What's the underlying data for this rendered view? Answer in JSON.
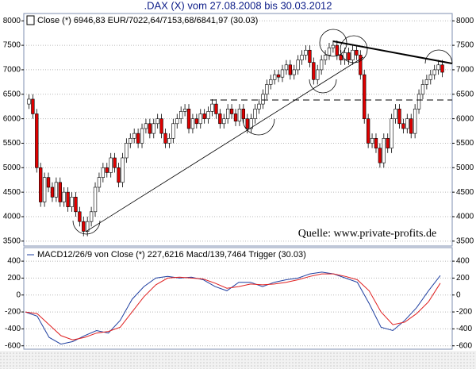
{
  "chart_data": [
    {
      "type": "candlestick",
      "title": ".DAX (X) vom 27.08.2008 bis 30.03.2012",
      "legend": "Close (*) 6946,83 EUR/7022,64/7153,68/6841,97 (30.03)",
      "annotation": "Quelle: www.private-profits.de",
      "up_color": "#ffffff",
      "down_color": "#e00000",
      "ylim": [
        3400,
        8150
      ],
      "yticks": [
        3500,
        4000,
        4500,
        5000,
        5500,
        6000,
        6500,
        7000,
        7500,
        8000
      ],
      "grid": true,
      "open": [
        6300,
        6400,
        6100,
        5000,
        4300,
        4800,
        4600,
        4400,
        4700,
        4300,
        4500,
        4200,
        4400,
        4100,
        3900,
        3700,
        3900,
        4100,
        4600,
        4800,
        5000,
        4900,
        5200,
        5000,
        4700,
        5200,
        5500,
        5600,
        5700,
        5500,
        5800,
        5900,
        5700,
        5900,
        6000,
        5700,
        5500,
        5600,
        5900,
        6000,
        6150,
        6200,
        5800,
        6000,
        5900,
        6100,
        6000,
        6150,
        6300,
        6100,
        5900,
        6000,
        6200,
        6100,
        5950,
        6200,
        6000,
        5800,
        6000,
        6200,
        6300,
        6500,
        6700,
        6800,
        6900,
        6850,
        7000,
        7100,
        6900,
        7000,
        7200,
        7300,
        7400,
        7150,
        6800,
        7000,
        7200,
        7300,
        7450,
        7500,
        7300,
        7200,
        7350,
        7200,
        7400,
        7300,
        6900,
        6000,
        5500,
        5600,
        5400,
        5100,
        5600,
        5400,
        6000,
        6200,
        5900,
        5800,
        6000,
        5700,
        6200,
        6500,
        6700,
        6800,
        6900,
        7000,
        7100
      ],
      "high": [
        6500,
        6500,
        6200,
        5100,
        4900,
        4900,
        4700,
        4800,
        4800,
        4600,
        4600,
        4500,
        4500,
        4200,
        4000,
        4000,
        4200,
        4700,
        4900,
        5100,
        5100,
        5300,
        5300,
        5100,
        5300,
        5600,
        5700,
        5800,
        5800,
        5900,
        6000,
        6000,
        6000,
        6100,
        6100,
        5800,
        5700,
        6000,
        6100,
        6250,
        6300,
        6300,
        6100,
        6100,
        6200,
        6200,
        6250,
        6400,
        6400,
        6200,
        6100,
        6300,
        6300,
        6200,
        6300,
        6300,
        6100,
        6100,
        6300,
        6400,
        6600,
        6800,
        6900,
        7000,
        7000,
        7100,
        7200,
        7200,
        7100,
        7300,
        7400,
        7500,
        7500,
        7250,
        7100,
        7300,
        7400,
        7550,
        7600,
        7600,
        7400,
        7450,
        7450,
        7500,
        7500,
        7400,
        7000,
        6100,
        5700,
        5700,
        5500,
        5700,
        5700,
        6100,
        6300,
        6300,
        6000,
        6100,
        6100,
        6300,
        6600,
        6800,
        6900,
        7000,
        7100,
        7200,
        7200
      ],
      "low": [
        6200,
        6000,
        4900,
        4200,
        4200,
        4500,
        4300,
        4300,
        4200,
        4200,
        4100,
        4100,
        4000,
        3800,
        3600,
        3600,
        3800,
        4000,
        4500,
        4700,
        4800,
        4800,
        4900,
        4600,
        4600,
        5100,
        5400,
        5500,
        5400,
        5400,
        5700,
        5600,
        5600,
        5800,
        5600,
        5400,
        5400,
        5500,
        5800,
        5900,
        6050,
        5700,
        5700,
        5800,
        5800,
        5900,
        5900,
        6050,
        6000,
        5800,
        5800,
        5900,
        6000,
        5850,
        5850,
        5900,
        5700,
        5700,
        5900,
        6100,
        6200,
        6400,
        6600,
        6700,
        6750,
        6750,
        6900,
        6800,
        6800,
        6900,
        7100,
        7200,
        7050,
        6700,
        6700,
        6900,
        7100,
        7200,
        7350,
        7200,
        7100,
        7100,
        7100,
        7100,
        7200,
        6800,
        5900,
        5400,
        5400,
        5300,
        5000,
        5000,
        5300,
        5300,
        5900,
        5800,
        5700,
        5700,
        5600,
        5600,
        6100,
        6400,
        6600,
        6700,
        6800,
        6900,
        6850
      ],
      "close": [
        6400,
        6100,
        5000,
        4300,
        4800,
        4600,
        4400,
        4700,
        4300,
        4500,
        4200,
        4400,
        4100,
        3900,
        3700,
        3900,
        4100,
        4600,
        4800,
        5000,
        4900,
        5200,
        5000,
        4700,
        5200,
        5500,
        5600,
        5700,
        5500,
        5800,
        5900,
        5700,
        5900,
        6000,
        5700,
        5500,
        5600,
        5900,
        6000,
        6150,
        6200,
        5800,
        6000,
        5900,
        6100,
        6000,
        6150,
        6300,
        6100,
        5900,
        6000,
        6200,
        6100,
        5950,
        6200,
        6000,
        5800,
        6000,
        6200,
        6300,
        6500,
        6700,
        6800,
        6900,
        6850,
        7000,
        7100,
        6900,
        7000,
        7200,
        7300,
        7400,
        7150,
        6800,
        7000,
        7200,
        7300,
        7450,
        7500,
        7300,
        7200,
        7350,
        7200,
        7400,
        7300,
        6900,
        6000,
        5500,
        5600,
        5400,
        5100,
        5600,
        5400,
        6000,
        6200,
        5900,
        5800,
        6000,
        5700,
        6200,
        6500,
        6700,
        6800,
        6900,
        7000,
        7100,
        6950
      ]
    },
    {
      "type": "line",
      "legend": "MACD12/26/9 von Close (*) 227,6216 Macd/139,7464 Trigger (30.03)",
      "ylim": [
        -640,
        560
      ],
      "yticks": [
        -600,
        -400,
        -200,
        0,
        200,
        400
      ],
      "grid": true,
      "series": [
        {
          "color": "#1f3fa0",
          "values": [
            -200,
            -250,
            -500,
            -580,
            -550,
            -480,
            -420,
            -450,
            -300,
            -50,
            100,
            200,
            220,
            200,
            210,
            180,
            100,
            50,
            150,
            150,
            100,
            150,
            180,
            200,
            250,
            270,
            250,
            200,
            150,
            -100,
            -380,
            -420,
            -300,
            -150,
            50,
            230
          ]
        },
        {
          "color": "#e02020",
          "values": [
            -200,
            -220,
            -350,
            -480,
            -530,
            -500,
            -450,
            -430,
            -380,
            -200,
            -20,
            120,
            200,
            210,
            200,
            190,
            140,
            80,
            100,
            130,
            120,
            130,
            150,
            180,
            220,
            250,
            250,
            220,
            180,
            50,
            -200,
            -350,
            -320,
            -220,
            -80,
            140
          ]
        }
      ]
    }
  ]
}
